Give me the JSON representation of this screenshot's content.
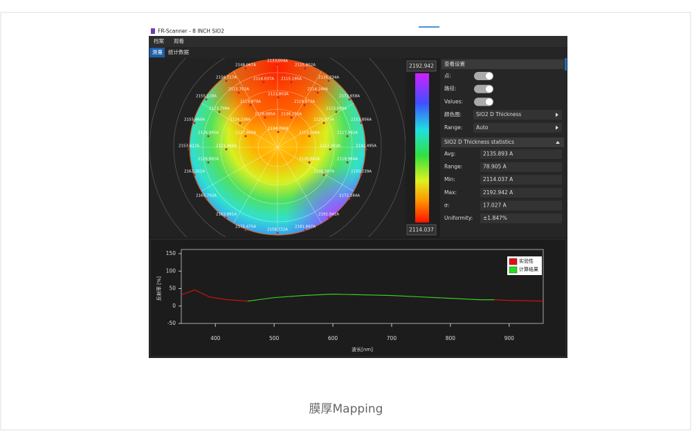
{
  "window": {
    "title": "FR-Scanner - 8 INCH SIO2",
    "menu": [
      "档案",
      "观看"
    ],
    "tabs": [
      "测量",
      "统计数据"
    ]
  },
  "wafer": {
    "labels": [
      "2133.004A",
      "2148.067A",
      "2125.802A",
      "2156.717A",
      "2114.037A",
      "2115.195A",
      "2135.234A",
      "2155.118A",
      "2115.702A",
      "2121.803A",
      "2114.249A",
      "2172.658A",
      "2119.979A",
      "2119.873A",
      "2123.798A",
      "2115.089A",
      "2155.460A",
      "2124.238A",
      "2128.085A",
      "2136.235A",
      "2120.173A",
      "2153.856A",
      "2126.995A",
      "2127.980A",
      "2134.700A",
      "2153.506A",
      "2117.992A",
      "2153.617A",
      "2121.466A",
      "2122.303A",
      "2141.495A",
      "2126.882A",
      "2126.882A",
      "2118.964A",
      "2162.351A",
      "2126.387A",
      "2150.239A",
      "2165.792A",
      "2172.184A",
      "2163.881A",
      "2192.942A",
      "2175.475A",
      "2181.897A",
      "2158.722A"
    ]
  },
  "colorbar": {
    "max": "2192.942",
    "min": "2114.037"
  },
  "settings": {
    "header": "查看设置",
    "rows": [
      {
        "label": "点:"
      },
      {
        "label": "路径:"
      },
      {
        "label": "Values:"
      },
      {
        "label": "颜色图:",
        "value": "SIO2 D Thickness"
      },
      {
        "label": "Range:",
        "value": "Auto"
      }
    ]
  },
  "statistics": {
    "header": "SIO2 D Thickness statistics",
    "rows": [
      {
        "label": "Avg:",
        "value": "2135.893 A"
      },
      {
        "label": "Range:",
        "value": "78.905 A"
      },
      {
        "label": "Min:",
        "value": "2114.037 A"
      },
      {
        "label": "Max:",
        "value": "2192.942 A"
      },
      {
        "label": "σ:",
        "value": "17.027 A"
      },
      {
        "label": "Uniformity:",
        "value": "±1.847%"
      }
    ]
  },
  "chart_data": {
    "type": "line",
    "xlabel": "波长[nm]",
    "ylabel": "反射率 [%]",
    "x": [
      342,
      365,
      390,
      420,
      455,
      500,
      550,
      600,
      650,
      700,
      750,
      800,
      850,
      875,
      900,
      958
    ],
    "series": [
      {
        "name": "实验性",
        "color": "#e01010",
        "values": [
          32,
          46,
          26,
          18,
          14,
          24,
          30,
          34,
          32,
          30,
          26,
          22,
          18,
          18,
          16,
          14
        ]
      },
      {
        "name": "计算结果",
        "color": "#20e020",
        "values": [
          null,
          null,
          null,
          null,
          14,
          24,
          30,
          34,
          32,
          30,
          26,
          22,
          18,
          18,
          null,
          null
        ]
      }
    ],
    "xlim": [
      342,
      958
    ],
    "ylim": [
      -50,
      150
    ],
    "xticks": [
      400,
      500,
      600,
      700,
      800,
      900
    ],
    "yticks": [
      -50,
      0,
      50,
      100,
      150
    ]
  },
  "caption": "膜厚Mapping"
}
